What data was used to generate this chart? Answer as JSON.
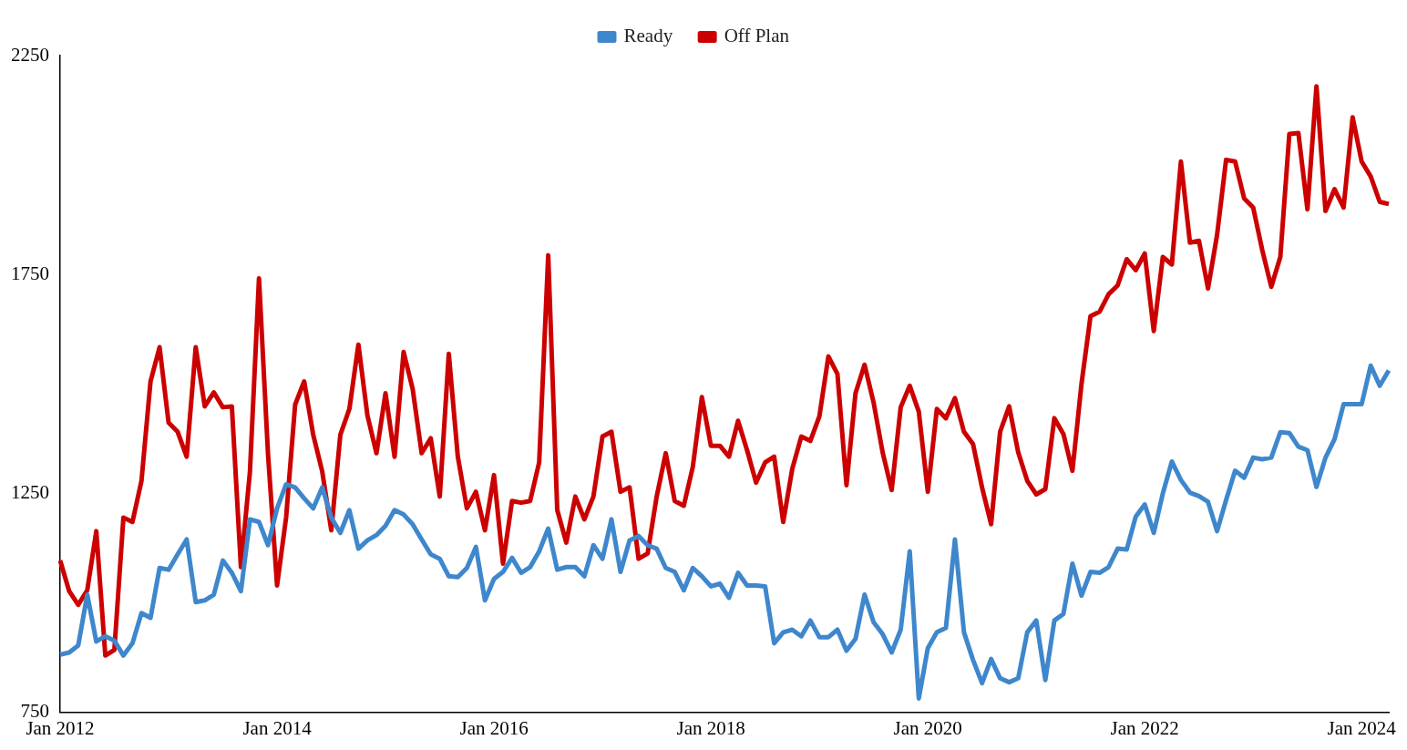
{
  "chart_data": {
    "type": "line",
    "categories": [
      "Jan 2012",
      null,
      null,
      null,
      null,
      null,
      null,
      null,
      null,
      null,
      null,
      null,
      null,
      null,
      null,
      null,
      null,
      null,
      null,
      null,
      null,
      null,
      null,
      null,
      "Jan 2014",
      null,
      null,
      null,
      null,
      null,
      null,
      null,
      null,
      null,
      null,
      null,
      null,
      null,
      null,
      null,
      null,
      null,
      null,
      null,
      null,
      null,
      null,
      null,
      "Jan 2016",
      null,
      null,
      null,
      null,
      null,
      null,
      null,
      null,
      null,
      null,
      null,
      null,
      null,
      null,
      null,
      null,
      null,
      null,
      null,
      null,
      null,
      null,
      null,
      "Jan 2018",
      null,
      null,
      null,
      null,
      null,
      null,
      null,
      null,
      null,
      null,
      null,
      null,
      null,
      null,
      null,
      null,
      null,
      null,
      null,
      null,
      null,
      null,
      null,
      "Jan 2020",
      null,
      null,
      null,
      null,
      null,
      null,
      null,
      null,
      null,
      null,
      null,
      null,
      null,
      null,
      null,
      null,
      null,
      null,
      null,
      null,
      null,
      null,
      null,
      "Jan 2022",
      null,
      null,
      null,
      null,
      null,
      null,
      null,
      null,
      null,
      null,
      null,
      null,
      null,
      null,
      null,
      null,
      null,
      null,
      null,
      null,
      null,
      null,
      null,
      "Jan 2024",
      null,
      null,
      null
    ],
    "series": [
      {
        "name": "Ready",
        "color": "#3f87cc",
        "values": [
          882,
          887,
          903,
          1019,
          912,
          924,
          914,
          880,
          908,
          977,
          966,
          1080,
          1076,
          1111,
          1145,
          1002,
          1006,
          1019,
          1097,
          1069,
          1027,
          1191,
          1185,
          1132,
          1216,
          1271,
          1264,
          1239,
          1216,
          1264,
          1195,
          1160,
          1212,
          1124,
          1143,
          1155,
          1176,
          1212,
          1202,
          1180,
          1145,
          1111,
          1101,
          1061,
          1059,
          1080,
          1128,
          1006,
          1055,
          1071,
          1103,
          1069,
          1082,
          1118,
          1170,
          1076,
          1082,
          1082,
          1061,
          1132,
          1101,
          1191,
          1071,
          1143,
          1153,
          1132,
          1124,
          1080,
          1071,
          1029,
          1080,
          1061,
          1038,
          1044,
          1012,
          1069,
          1040,
          1040,
          1038,
          908,
          933,
          939,
          924,
          960,
          922,
          922,
          939,
          891,
          918,
          1019,
          956,
          929,
          887,
          939,
          1118,
          782,
          897,
          933,
          943,
          1145,
          933,
          870,
          817,
          872,
          828,
          819,
          828,
          933,
          960,
          824,
          960,
          975,
          1090,
          1017,
          1071,
          1069,
          1082,
          1124,
          1122,
          1197,
          1225,
          1160,
          1250,
          1323,
          1281,
          1252,
          1244,
          1231,
          1164,
          1235,
          1302,
          1286,
          1332,
          1328,
          1332,
          1390,
          1388,
          1357,
          1349,
          1265,
          1332,
          1374,
          1454,
          1454,
          1454,
          1542,
          1496,
          1531
        ]
      },
      {
        "name": "Off Plan",
        "color": "#cc0000",
        "values": [
          1097,
          1027,
          996,
          1029,
          1164,
          880,
          893,
          1195,
          1185,
          1279,
          1506,
          1584,
          1412,
          1391,
          1334,
          1584,
          1449,
          1481,
          1447,
          1449,
          1082,
          1300,
          1741,
          1340,
          1040,
          1195,
          1453,
          1506,
          1384,
          1300,
          1166,
          1384,
          1443,
          1590,
          1428,
          1342,
          1479,
          1334,
          1573,
          1489,
          1342,
          1376,
          1243,
          1569,
          1334,
          1216,
          1254,
          1166,
          1292,
          1090,
          1233,
          1229,
          1233,
          1321,
          1794,
          1212,
          1138,
          1243,
          1191,
          1243,
          1380,
          1391,
          1254,
          1264,
          1101,
          1113,
          1243,
          1342,
          1233,
          1222,
          1311,
          1470,
          1359,
          1359,
          1334,
          1416,
          1349,
          1275,
          1321,
          1334,
          1185,
          1306,
          1380,
          1370,
          1426,
          1563,
          1523,
          1269,
          1479,
          1544,
          1458,
          1344,
          1258,
          1447,
          1496,
          1437,
          1254,
          1443,
          1422,
          1468,
          1391,
          1363,
          1264,
          1180,
          1391,
          1449,
          1344,
          1279,
          1248,
          1260,
          1422,
          1386,
          1302,
          1500,
          1655,
          1665,
          1705,
          1725,
          1785,
          1760,
          1798,
          1621,
          1790,
          1773,
          2008,
          1823,
          1827,
          1718,
          1840,
          2012,
          2008,
          1924,
          1903,
          1806,
          1722,
          1790,
          2071,
          2073,
          1899,
          2180,
          1895,
          1945,
          1903,
          2109,
          2008,
          1974,
          1916,
          1911
        ]
      }
    ],
    "ylim": [
      750,
      2250
    ],
    "yticks": [
      750,
      1250,
      1750,
      2250
    ],
    "legend": "top",
    "marker": "none",
    "line_style": "solid"
  }
}
